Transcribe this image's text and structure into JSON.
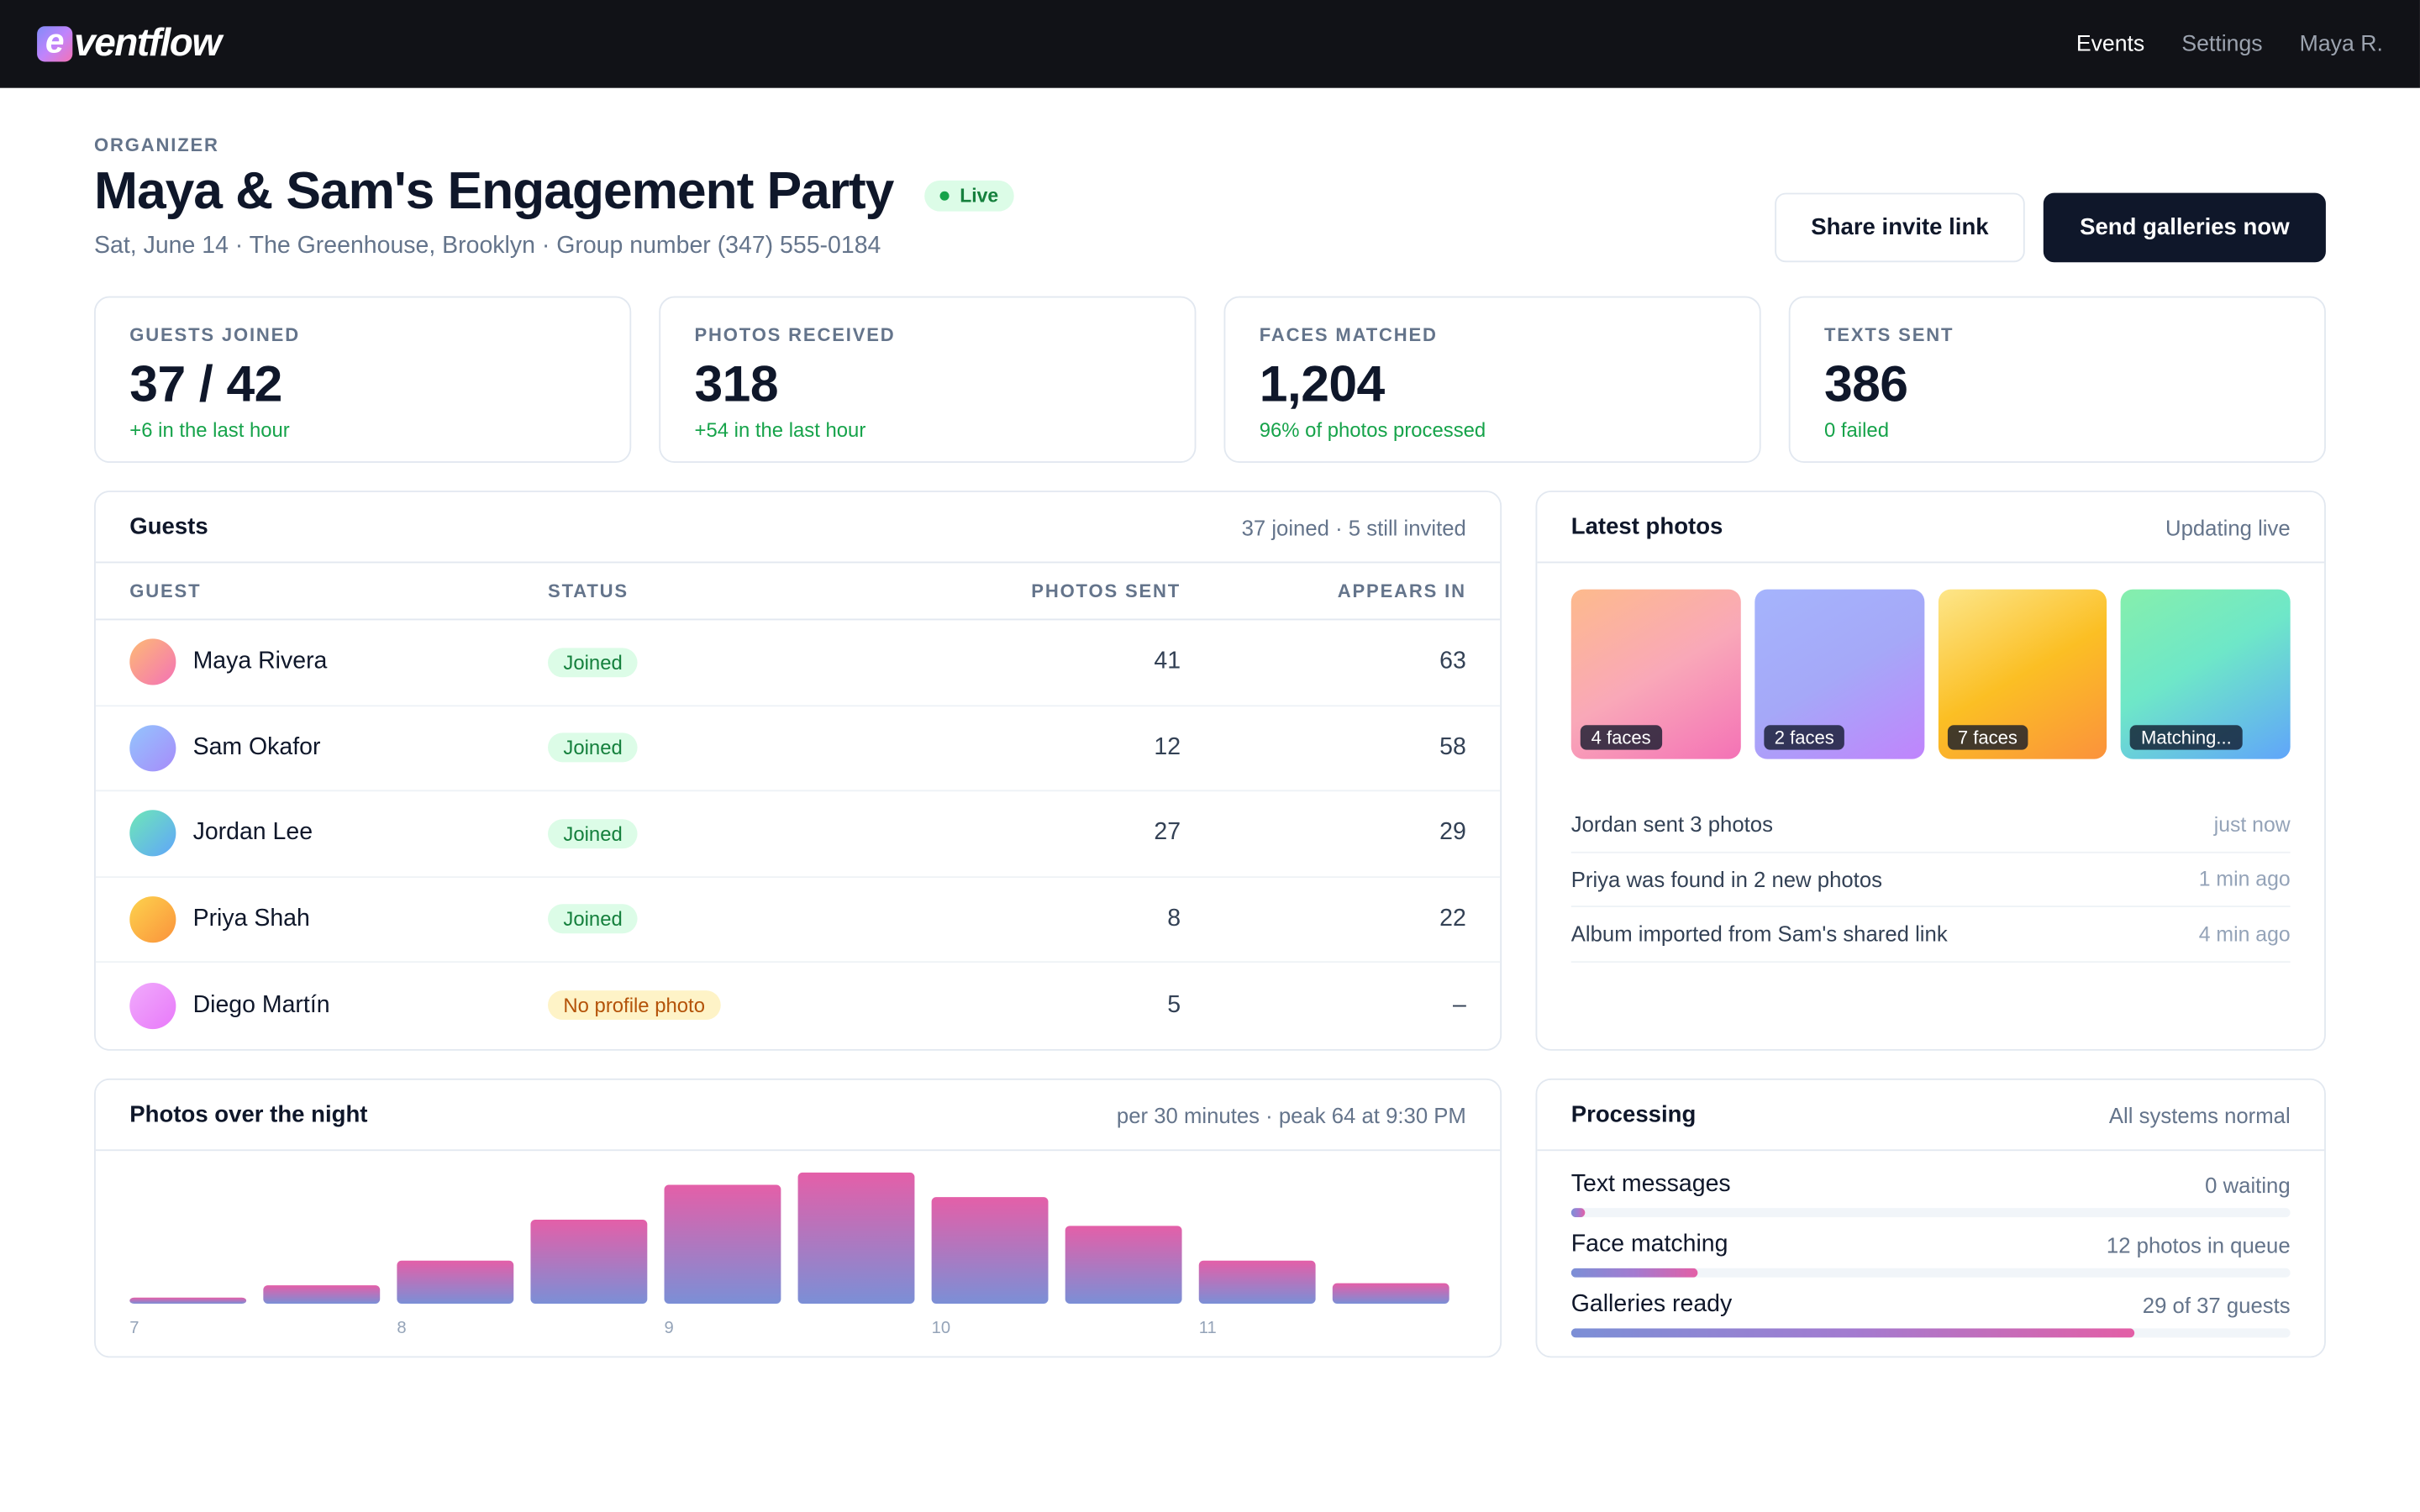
{
  "app": {
    "logo_mark": "e",
    "logo_text": "ventflow",
    "nav": [
      {
        "label": "Events",
        "active": true
      },
      {
        "label": "Settings",
        "active": false
      },
      {
        "label": "Maya R.",
        "active": false
      }
    ]
  },
  "header": {
    "eyebrow": "ORGANIZER",
    "title": "Maya & Sam's Engagement Party",
    "status_badge": "Live",
    "subtitle": "Sat, June 14 · The Greenhouse, Brooklyn · Group number (347) 555-0184",
    "share_button": "Share invite link",
    "send_button": "Send galleries now"
  },
  "stats": [
    {
      "label": "GUESTS JOINED",
      "value": "37 / 42",
      "delta": "+6 in the last hour"
    },
    {
      "label": "PHOTOS RECEIVED",
      "value": "318",
      "delta": "+54 in the last hour"
    },
    {
      "label": "FACES MATCHED",
      "value": "1,204",
      "delta": "96% of photos processed"
    },
    {
      "label": "TEXTS SENT",
      "value": "386",
      "delta": "0 failed"
    }
  ],
  "guests": {
    "title": "Guests",
    "meta": "37 joined · 5 still invited",
    "columns": {
      "guest": "GUEST",
      "status": "STATUS",
      "sent": "PHOTOS SENT",
      "appears": "APPEARS IN"
    },
    "rows": [
      {
        "name": "Maya Rivera",
        "status": "Joined",
        "sent": "41",
        "appears": "63"
      },
      {
        "name": "Sam Okafor",
        "status": "Joined",
        "sent": "12",
        "appears": "58"
      },
      {
        "name": "Jordan Lee",
        "status": "Joined",
        "sent": "27",
        "appears": "29"
      },
      {
        "name": "Priya Shah",
        "status": "Joined",
        "sent": "8",
        "appears": "22"
      },
      {
        "name": "Diego Martín",
        "status": "No profile photo",
        "sent": "5",
        "appears": "–"
      }
    ]
  },
  "latest_photos": {
    "title": "Latest photos",
    "meta": "Updating live",
    "thumbs": [
      {
        "tag": "4 faces"
      },
      {
        "tag": "2 faces"
      },
      {
        "tag": "7 faces"
      },
      {
        "tag": "Matching..."
      }
    ],
    "activity": [
      {
        "text": "Jordan sent 3 photos",
        "time": "just now"
      },
      {
        "text": "Priya was found in 2 new photos",
        "time": "1 min ago"
      },
      {
        "text": "Album imported from Sam's shared link",
        "time": "4 min ago"
      }
    ]
  },
  "photos_chart": {
    "title": "Photos over the night",
    "meta": "per 30 minutes · peak 64 at 9:30 PM"
  },
  "chart_data": {
    "type": "bar",
    "title": "Photos over the night",
    "categories": [
      "7",
      "7:30",
      "8",
      "8:30",
      "9",
      "9:30",
      "10",
      "10:30",
      "11",
      "11:30"
    ],
    "values": [
      3,
      9,
      21,
      41,
      58,
      64,
      52,
      38,
      21,
      10
    ],
    "tick_labels": [
      "7",
      "8",
      "9",
      "10",
      "11"
    ],
    "xlabel": "",
    "ylabel": "",
    "ylim": [
      0,
      64
    ],
    "grid": false
  },
  "processing": {
    "title": "Processing",
    "meta": "All systems normal",
    "rows": [
      {
        "label": "Text messages",
        "value": "0 waiting",
        "progress": 0.02
      },
      {
        "label": "Face matching",
        "value": "12 photos in queue",
        "progress": 0.176
      },
      {
        "label": "Galleries ready",
        "value": "29 of 37 guests",
        "progress": 0.784
      }
    ]
  }
}
